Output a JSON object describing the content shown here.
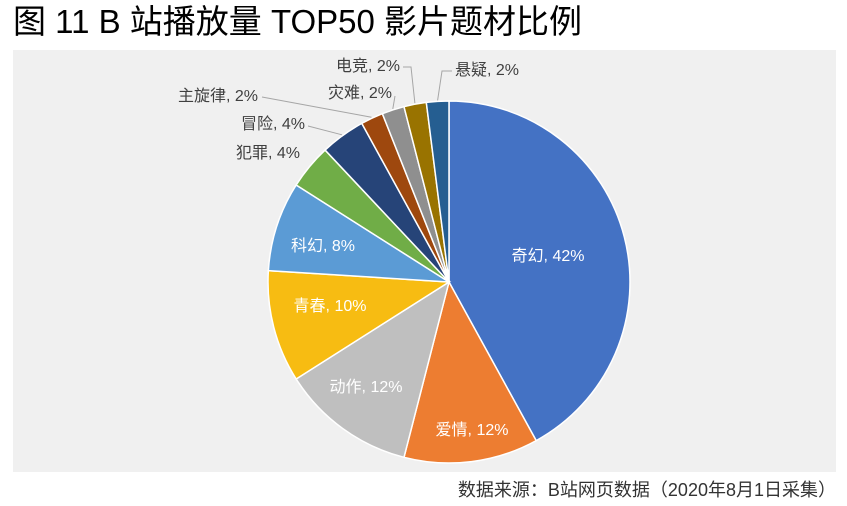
{
  "source": "数据来源：B站网页数据（2020年8月1日采集）",
  "chart_data": {
    "type": "pie",
    "title": "图 11 B 站播放量 TOP50 影片题材比例",
    "categories": [
      "奇幻",
      "爱情",
      "动作",
      "青春",
      "科幻",
      "犯罪",
      "冒险",
      "主旋律",
      "灾难",
      "电竞",
      "悬疑"
    ],
    "values": [
      42,
      12,
      12,
      10,
      8,
      4,
      4,
      2,
      2,
      2,
      2
    ],
    "unit": "%",
    "colors": [
      "#4472C4",
      "#ED7D31",
      "#BFBFBF",
      "#F7BC12",
      "#5B9BD5",
      "#70AD47",
      "#264478",
      "#9E480E",
      "#8F8F8F",
      "#997300",
      "#255E91"
    ]
  }
}
